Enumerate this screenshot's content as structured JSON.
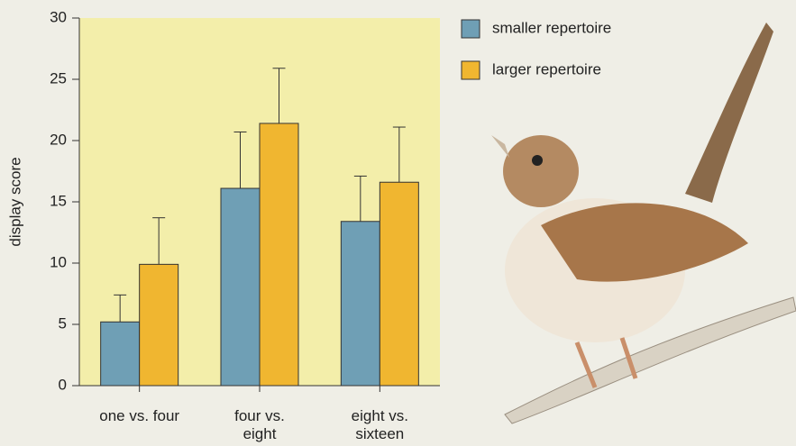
{
  "chart_data": {
    "type": "bar",
    "ylabel": "display score",
    "categories": [
      "one vs. four",
      "four vs. eight",
      "eight vs. sixteen"
    ],
    "series": [
      {
        "name": "smaller repertoire",
        "color": "#6f9fb5",
        "values": [
          5.2,
          16.1,
          13.4
        ],
        "errors": [
          2.2,
          4.6,
          3.7
        ]
      },
      {
        "name": "larger repertoire",
        "color": "#f0b630",
        "values": [
          9.9,
          21.4,
          16.6
        ],
        "errors": [
          3.8,
          4.5,
          4.5
        ]
      }
    ],
    "ylim": [
      0,
      30
    ],
    "yticks": [
      0,
      5,
      10,
      15,
      20,
      25,
      30
    ],
    "background": "#f3eeaa"
  }
}
